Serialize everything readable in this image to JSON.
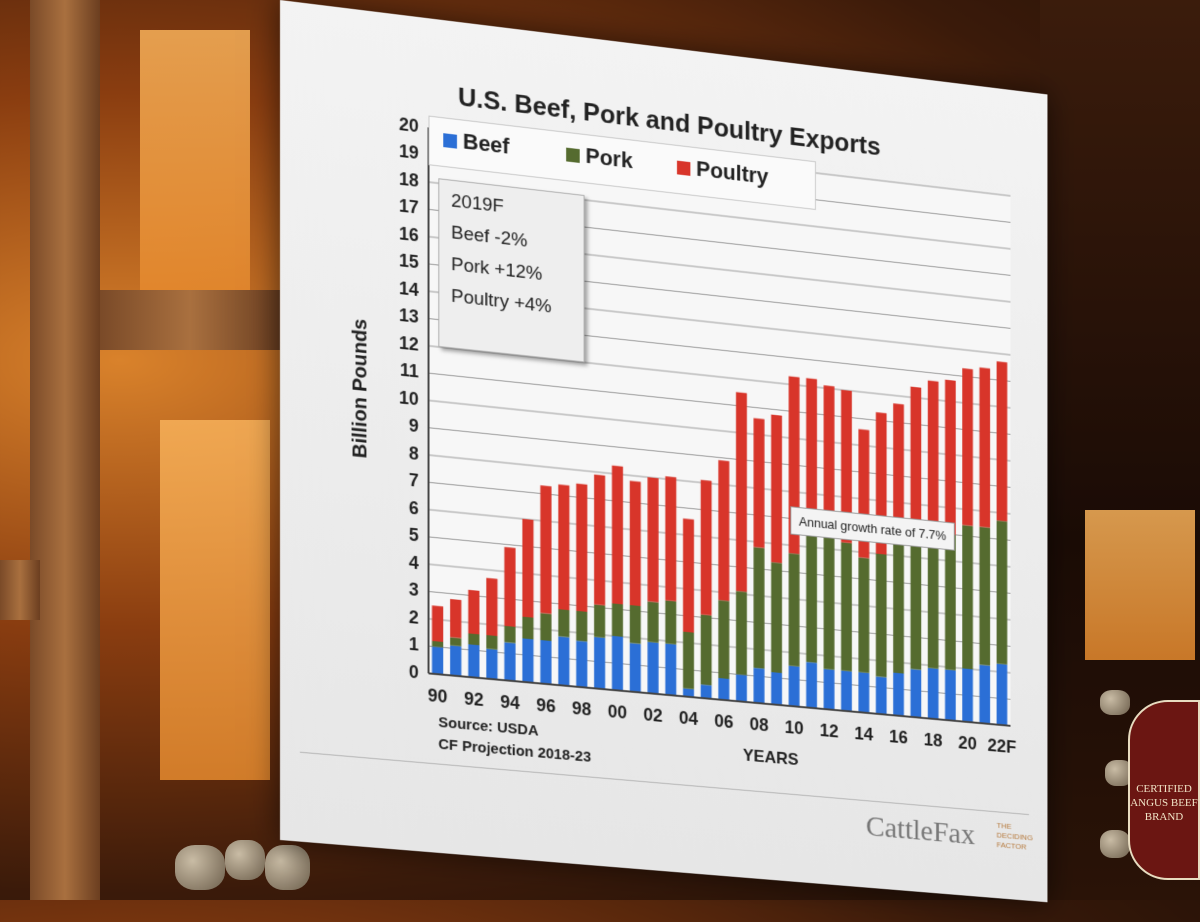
{
  "slide": {
    "title": "U.S. Beef, Pork and Poultry Exports",
    "forecast": {
      "heading": "2019F",
      "lines": [
        "Beef -2%",
        "Pork +12%",
        "Poultry +4%"
      ]
    },
    "annotation": "Annual growth rate of 7.7%",
    "source": "Source: USDA",
    "projection": "CF Projection 2018-23",
    "brand": "CattleFax",
    "brand_tagline": [
      "THE",
      "DECIDING",
      "FACTOR"
    ]
  },
  "venue_badge": {
    "lines": [
      "CERTIFIED",
      "ANGUS BEEF",
      "BRAND"
    ]
  },
  "colors": {
    "beef": "#2b6fd6",
    "pork": "#556b2f",
    "poultry": "#d8352a"
  },
  "chart_data": {
    "type": "bar",
    "stacked": true,
    "title": "U.S. Beef, Pork and Poultry Exports",
    "xlabel": "YEARS",
    "ylabel": "Billion Pounds",
    "ylim": [
      0,
      20
    ],
    "yticks": [
      0,
      1,
      2,
      3,
      4,
      5,
      6,
      7,
      8,
      9,
      10,
      11,
      12,
      13,
      14,
      15,
      16,
      17,
      18,
      19,
      20
    ],
    "grid": true,
    "legend_position": "top",
    "categories": [
      "90",
      "91",
      "92",
      "93",
      "94",
      "95",
      "96",
      "97",
      "98",
      "99",
      "00",
      "01",
      "02",
      "03",
      "04",
      "05",
      "06",
      "07",
      "08",
      "09",
      "10",
      "11",
      "12",
      "13",
      "14",
      "15",
      "16",
      "17",
      "18",
      "19",
      "20",
      "21",
      "22F"
    ],
    "tick_labels": [
      "90",
      "92",
      "94",
      "96",
      "98",
      "00",
      "02",
      "04",
      "06",
      "08",
      "10",
      "12",
      "14",
      "16",
      "18",
      "20",
      "22F"
    ],
    "series": [
      {
        "name": "Beef",
        "color": "#2b6fd6",
        "values": [
          1.0,
          1.1,
          1.2,
          1.1,
          1.4,
          1.6,
          1.6,
          1.8,
          1.7,
          1.9,
          2.0,
          1.8,
          1.9,
          1.9,
          0.3,
          0.5,
          0.8,
          1.0,
          1.3,
          1.2,
          1.5,
          1.7,
          1.5,
          1.5,
          1.5,
          1.4,
          1.6,
          1.8,
          1.9,
          1.9,
          2.0,
          2.2,
          2.3
        ]
      },
      {
        "name": "Pork",
        "color": "#556b2f",
        "values": [
          0.2,
          0.3,
          0.4,
          0.5,
          0.6,
          0.8,
          1.0,
          1.0,
          1.1,
          1.2,
          1.2,
          1.4,
          1.5,
          1.6,
          2.1,
          2.6,
          2.9,
          3.1,
          4.5,
          4.1,
          4.2,
          4.7,
          5.0,
          4.8,
          4.3,
          4.6,
          5.0,
          5.2,
          5.4,
          5.1,
          5.4,
          5.2,
          5.4
        ]
      },
      {
        "name": "Poultry",
        "color": "#d8352a",
        "values": [
          1.3,
          1.4,
          1.6,
          2.1,
          2.9,
          3.6,
          4.7,
          4.6,
          4.7,
          4.8,
          5.1,
          4.6,
          4.6,
          4.6,
          4.2,
          5.0,
          5.2,
          7.4,
          4.8,
          5.5,
          6.6,
          5.9,
          5.6,
          5.7,
          4.8,
          5.3,
          5.1,
          5.4,
          5.4,
          5.8,
          5.9,
          6.0,
          6.0
        ]
      }
    ]
  }
}
